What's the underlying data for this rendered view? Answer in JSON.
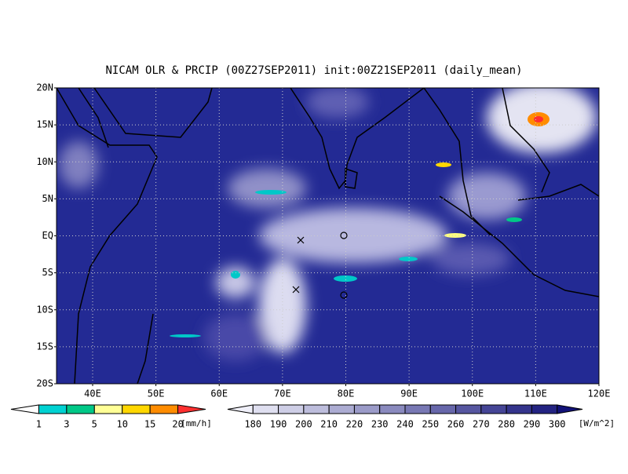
{
  "title": "NICAM OLR & PRCIP (00Z27SEP2011) init:00Z21SEP2011 (daily_mean)",
  "lat_labels": [
    "20N",
    "15N",
    "10N",
    "5N",
    "EQ",
    "5S",
    "10S",
    "15S",
    "20S"
  ],
  "lon_labels": [
    "40E",
    "50E",
    "60E",
    "70E",
    "80E",
    "90E",
    "100E",
    "110E",
    "120E"
  ],
  "precip_colorbar": {
    "levels": [
      1,
      3,
      5,
      10,
      15,
      20
    ],
    "unit": "[mm/h]"
  },
  "olr_colorbar": {
    "levels": [
      180,
      190,
      200,
      210,
      220,
      230,
      240,
      250,
      260,
      270,
      280,
      290,
      300
    ],
    "unit": "[W/m^2]"
  }
}
